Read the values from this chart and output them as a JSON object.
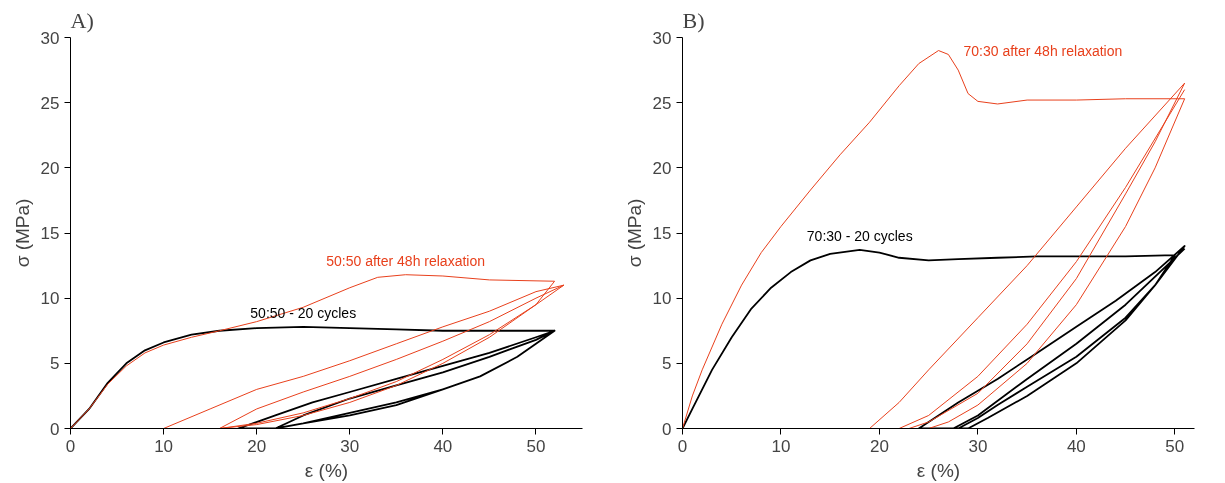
{
  "chart_data": [
    {
      "type": "line",
      "title": "A)",
      "xlabel": "ε (%)",
      "ylabel": "σ (MPa)",
      "xlim": [
        0,
        55
      ],
      "ylim": [
        0,
        30
      ],
      "xticks": [
        0,
        10,
        20,
        30,
        40,
        50
      ],
      "yticks": [
        0,
        5,
        10,
        15,
        20,
        25,
        30
      ],
      "grid": false,
      "line_style": "solid",
      "marker": "none",
      "series": [
        {
          "name": "50:50 - 20 cycles",
          "color": "#000000",
          "x": [
            0,
            2,
            4,
            6,
            8,
            10,
            13,
            16,
            20,
            25,
            30,
            35,
            40,
            45,
            52,
            48,
            44,
            40,
            35,
            30,
            25,
            22,
            18,
            22,
            26,
            30,
            35,
            40,
            45,
            50,
            52,
            48,
            44,
            40,
            35,
            30,
            25,
            22,
            25,
            30,
            35,
            40,
            45,
            50,
            52
          ],
          "values": [
            0,
            1.5,
            3.5,
            5,
            6,
            6.6,
            7.2,
            7.5,
            7.7,
            7.8,
            7.7,
            7.6,
            7.5,
            7.5,
            7.5,
            5.5,
            4,
            3,
            1.8,
            1,
            0.4,
            0,
            0,
            1,
            2,
            2.8,
            3.8,
            4.8,
            5.8,
            7,
            7.5,
            5.5,
            4,
            3,
            2,
            1.2,
            0.4,
            0,
            1,
            2.3,
            3.3,
            4.3,
            5.5,
            6.8,
            7.5
          ]
        },
        {
          "name": "50:50 after 48h relaxation",
          "color": "#e8401c",
          "x": [
            0,
            2,
            4,
            6,
            8,
            10,
            13,
            16,
            20,
            25,
            30,
            33,
            36,
            40,
            45,
            52,
            50,
            45,
            40,
            35,
            30,
            25,
            20,
            16,
            10,
            15,
            20,
            25,
            30,
            35,
            40,
            45,
            50,
            53,
            50,
            45,
            40,
            35,
            30,
            25,
            20,
            16,
            20,
            25,
            30,
            35,
            40,
            45,
            50,
            53
          ],
          "values": [
            0,
            1.5,
            3.4,
            4.8,
            5.8,
            6.4,
            7,
            7.5,
            8.2,
            9.3,
            10.8,
            11.6,
            11.8,
            11.7,
            11.4,
            11.3,
            9.5,
            7,
            5,
            3.3,
            2,
            1,
            0.3,
            0,
            0,
            1.5,
            3,
            4,
            5.2,
            6.5,
            7.8,
            9,
            10.5,
            11,
            9.5,
            7.2,
            5.3,
            3.6,
            2.3,
            1.2,
            0.4,
            0,
            1.5,
            2.8,
            4,
            5.3,
            6.7,
            8.2,
            10,
            11
          ]
        }
      ]
    },
    {
      "type": "line",
      "title": "B)",
      "xlabel": "ε (%)",
      "ylabel": "σ (MPa)",
      "xlim": [
        0,
        52
      ],
      "ylim": [
        0,
        30
      ],
      "xticks": [
        0,
        10,
        20,
        30,
        40,
        50
      ],
      "yticks": [
        0,
        5,
        10,
        15,
        20,
        25,
        30
      ],
      "grid": false,
      "line_style": "solid",
      "marker": "none",
      "series": [
        {
          "name": "70:30 - 20 cycles",
          "color": "#000000",
          "x": [
            0,
            1,
            3,
            5,
            7,
            9,
            11,
            13,
            15,
            18,
            20,
            22,
            25,
            28,
            32,
            36,
            40,
            45,
            50,
            48,
            45,
            40,
            35,
            32,
            30,
            28,
            24,
            28,
            32,
            36,
            40,
            44,
            48,
            51,
            48,
            45,
            40,
            35,
            31,
            29,
            27.5,
            30,
            35,
            40,
            45,
            51
          ],
          "values": [
            0,
            1.5,
            4.5,
            7,
            9.2,
            10.8,
            12,
            12.9,
            13.4,
            13.7,
            13.5,
            13.1,
            12.9,
            13,
            13.1,
            13.2,
            13.2,
            13.2,
            13.3,
            11,
            8.5,
            5.5,
            3.2,
            1.8,
            0.8,
            0,
            0,
            2,
            3.8,
            5.8,
            7.8,
            9.8,
            12,
            14,
            11,
            8.3,
            5,
            2.5,
            0.8,
            0,
            0,
            1,
            3.8,
            6.5,
            9.5,
            13.8
          ]
        },
        {
          "name": "70:30 after 48h relaxation",
          "color": "#e8401c",
          "x": [
            0,
            1,
            2,
            4,
            6,
            8,
            10,
            13,
            16,
            19,
            22,
            24,
            26,
            27,
            28,
            29,
            30,
            32,
            35,
            40,
            45,
            51,
            48,
            45,
            40,
            35,
            30,
            27,
            25,
            19,
            22,
            25,
            30,
            35,
            40,
            45,
            51,
            48,
            45,
            40,
            35,
            30,
            25,
            23,
            22,
            25,
            30,
            35,
            40,
            45,
            51
          ],
          "values": [
            0,
            2.5,
            4.5,
            8,
            11,
            13.5,
            15.5,
            18.3,
            21,
            23.5,
            26.3,
            28,
            29,
            28.7,
            27.5,
            25.7,
            25.1,
            24.9,
            25.2,
            25.2,
            25.3,
            25.3,
            20,
            15.5,
            9.5,
            5,
            1.8,
            0.5,
            0,
            0,
            2,
            4.5,
            8.5,
            12.5,
            17,
            21.5,
            26.5,
            22,
            18,
            11.5,
            6.5,
            2.7,
            0.5,
            0,
            0,
            1,
            4,
            8,
            12.8,
            18.5,
            26
          ]
        }
      ]
    }
  ]
}
